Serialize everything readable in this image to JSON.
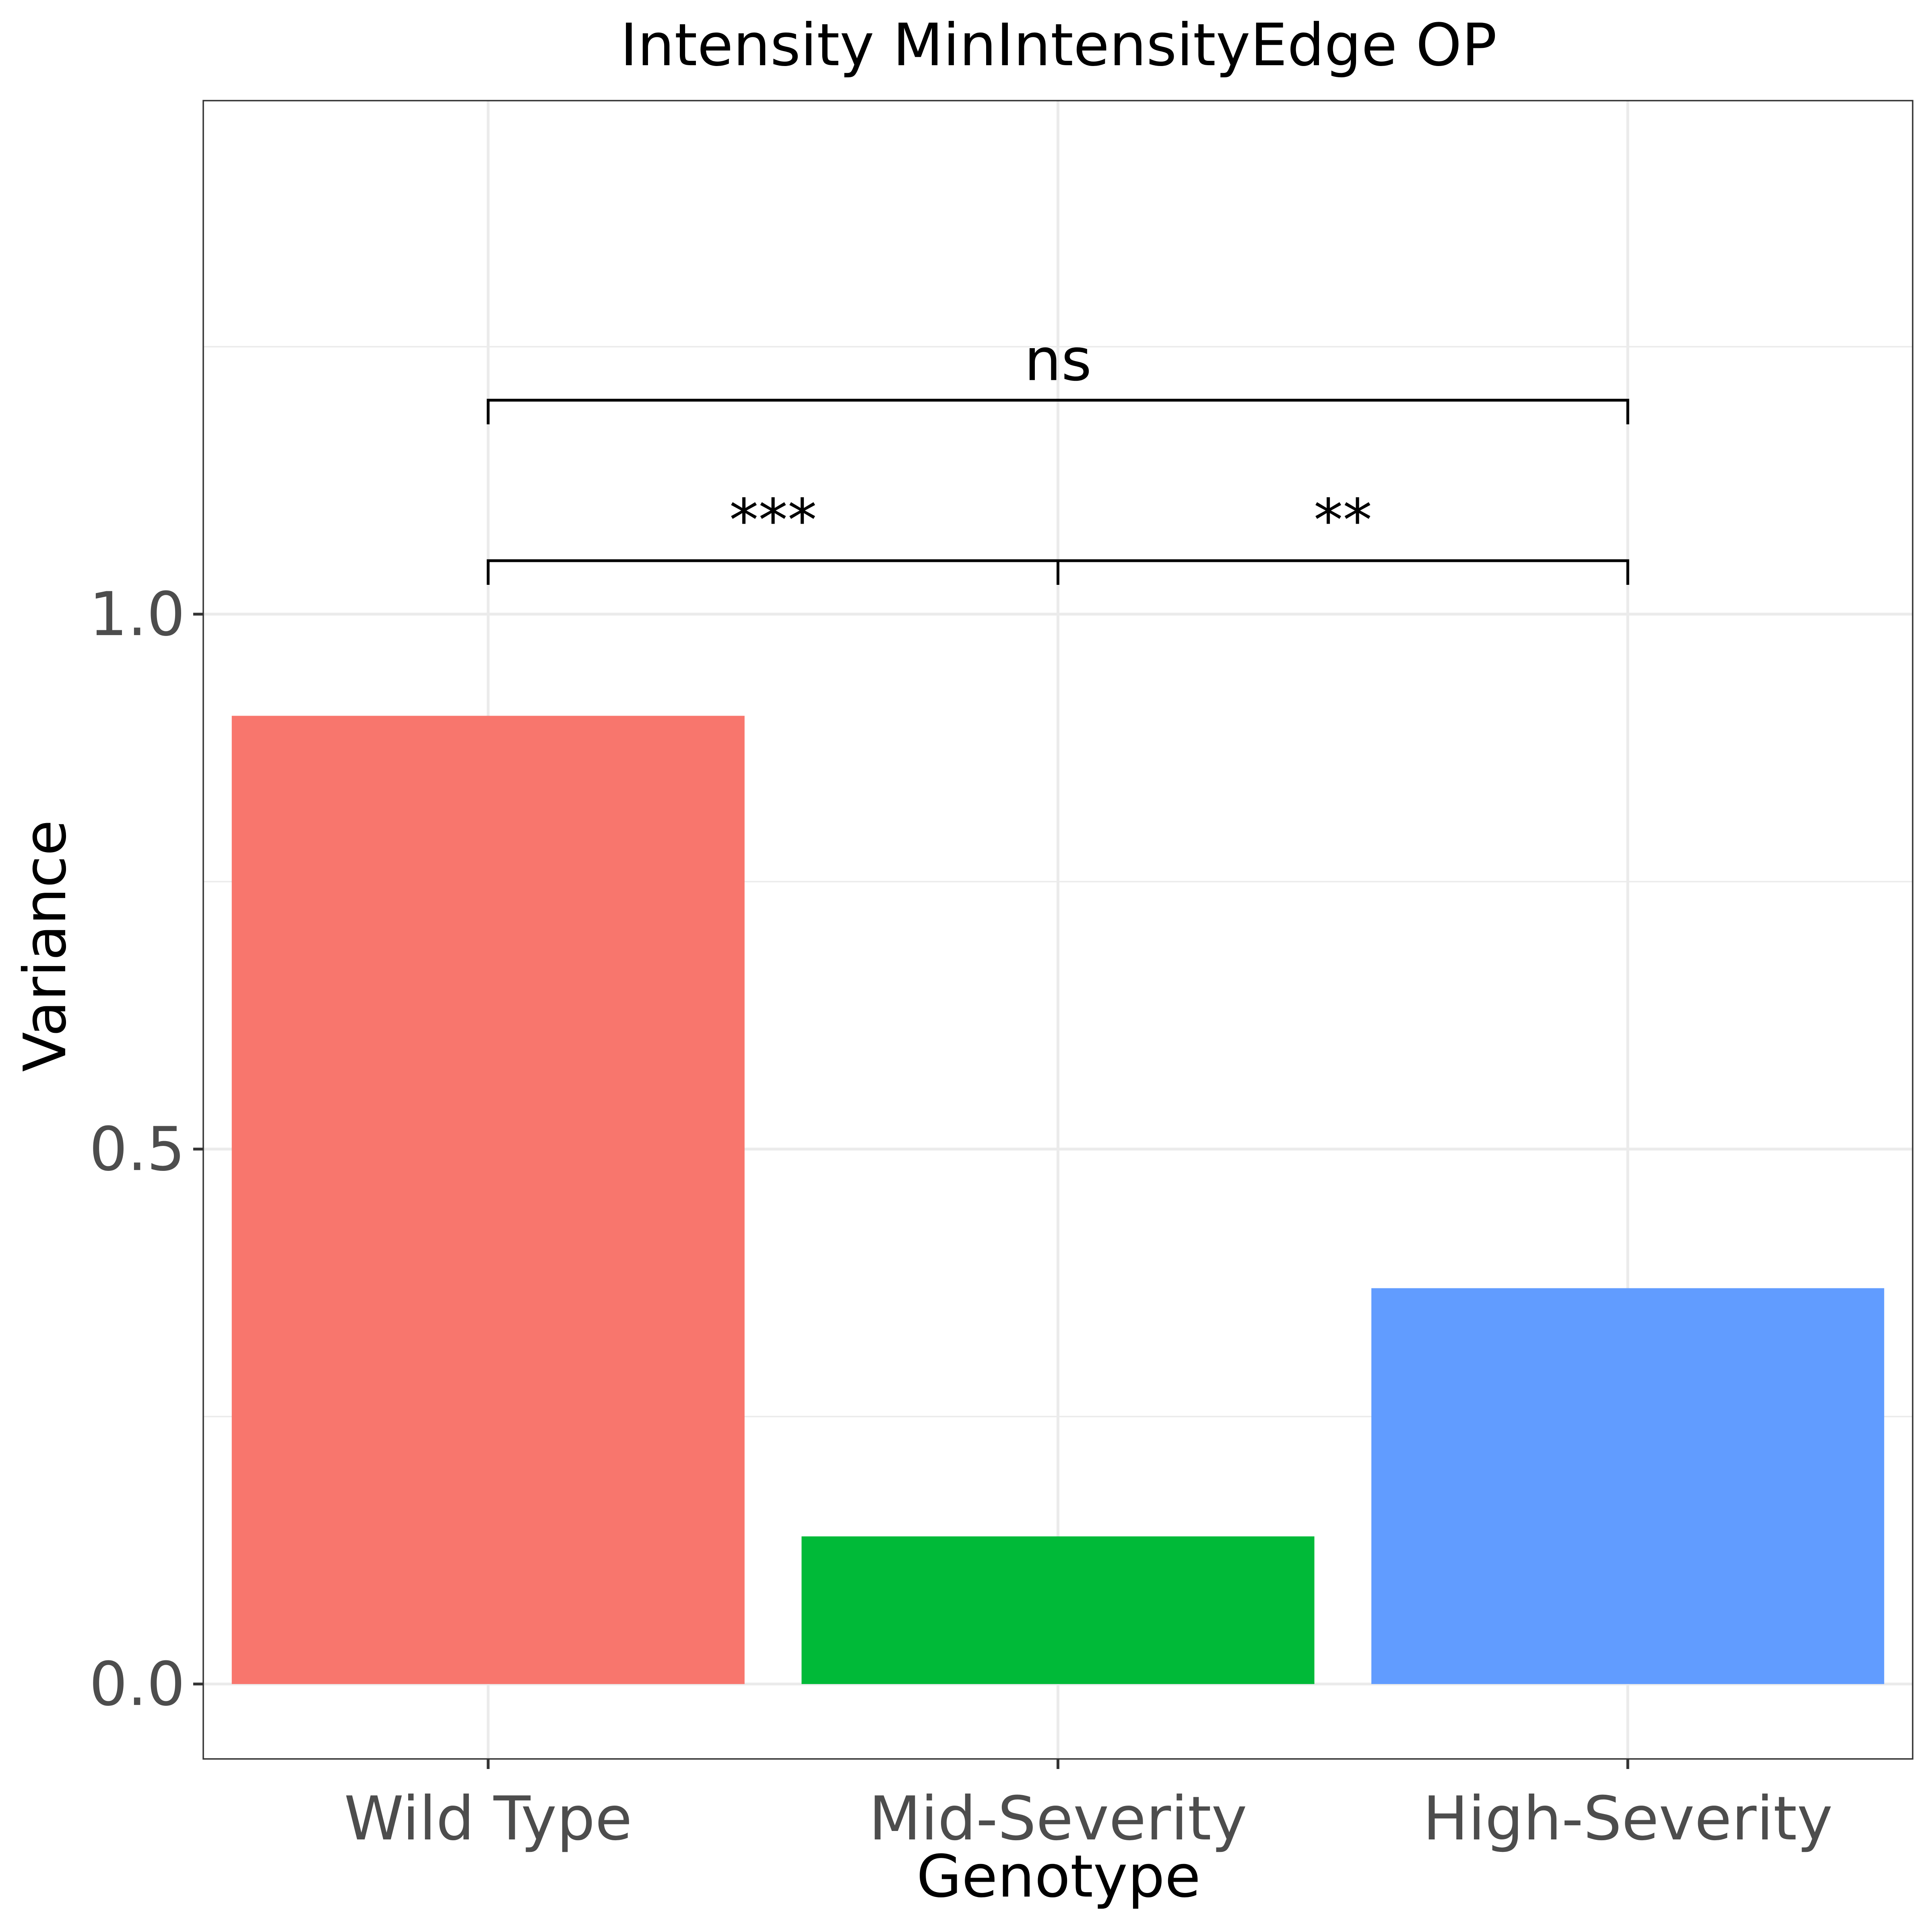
{
  "chart_data": {
    "type": "bar",
    "title": "Intensity MinIntensityEdge OP",
    "xlabel": "Genotype",
    "ylabel": "Variance",
    "categories": [
      "Wild Type",
      "Mid-Severity",
      "High-Severity"
    ],
    "values": [
      0.905,
      0.138,
      0.37
    ],
    "colors": [
      "#F8766D",
      "#00BA38",
      "#619CFF"
    ],
    "ylim": [
      -0.07,
      1.48
    ],
    "yticks": [
      0.0,
      0.5,
      1.0
    ],
    "ytick_labels": [
      "0.0",
      "0.5",
      "1.0"
    ],
    "grid": true,
    "legend": "none",
    "annotations": [
      {
        "from": "Wild Type",
        "to": "Mid-Severity",
        "y": 1.05,
        "label": "***"
      },
      {
        "from": "Mid-Severity",
        "to": "High-Severity",
        "y": 1.05,
        "label": "**"
      },
      {
        "from": "Wild Type",
        "to": "High-Severity",
        "y": 1.2,
        "label": "ns"
      }
    ]
  }
}
